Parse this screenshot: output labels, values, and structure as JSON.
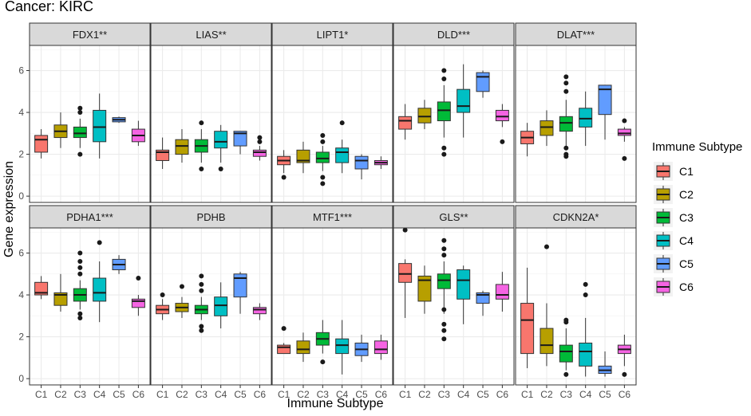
{
  "figure": {
    "title": "Cancer: KIRC",
    "xlabel": "Immune Subtype",
    "ylabel": "Gene expression",
    "legend_title": "Immune Subtype"
  },
  "chart_data": {
    "type": "boxplot",
    "facet_layout": "2 rows x 5 columns",
    "categories": [
      "C1",
      "C2",
      "C3",
      "C4",
      "C5",
      "C6"
    ],
    "colors": {
      "C1": "#F8766D",
      "C2": "#B79F00",
      "C3": "#00BA38",
      "C4": "#00BFC4",
      "C5": "#619CFF",
      "C6": "#F564E3"
    },
    "legend": [
      "C1",
      "C2",
      "C3",
      "C4",
      "C5",
      "C6"
    ],
    "legend_position": "right",
    "rows": [
      {
        "ylim": [
          0,
          7.2
        ],
        "yticks": [
          0,
          2,
          4,
          6
        ],
        "yticklabels": [
          "0",
          "2",
          "4",
          "6"
        ]
      },
      {
        "ylim": [
          0,
          7.2
        ],
        "yticks": [
          0,
          2,
          4,
          6
        ],
        "yticklabels": [
          "0",
          "2",
          "4",
          "6"
        ]
      }
    ],
    "panels": [
      {
        "title": "FDX1**",
        "boxes": [
          {
            "cat": "C1",
            "min": 1.8,
            "q1": 2.1,
            "median": 2.7,
            "q3": 2.9,
            "max": 3.2,
            "outliers": []
          },
          {
            "cat": "C2",
            "min": 2.3,
            "q1": 2.8,
            "median": 3.1,
            "q3": 3.4,
            "max": 4.0,
            "outliers": []
          },
          {
            "cat": "C3",
            "min": 2.3,
            "q1": 2.8,
            "median": 3.0,
            "q3": 3.3,
            "max": 3.7,
            "outliers": [
              2.0,
              4.0,
              4.2
            ]
          },
          {
            "cat": "C4",
            "min": 1.8,
            "q1": 2.6,
            "median": 3.3,
            "q3": 4.1,
            "max": 4.9,
            "outliers": []
          },
          {
            "cat": "C5",
            "min": 3.5,
            "q1": 3.55,
            "median": 3.65,
            "q3": 3.75,
            "max": 3.8,
            "outliers": []
          },
          {
            "cat": "C6",
            "min": 2.4,
            "q1": 2.6,
            "median": 2.9,
            "q3": 3.2,
            "max": 3.6,
            "outliers": []
          }
        ]
      },
      {
        "title": "LIAS**",
        "boxes": [
          {
            "cat": "C1",
            "min": 1.3,
            "q1": 1.7,
            "median": 2.1,
            "q3": 2.2,
            "max": 2.8,
            "outliers": []
          },
          {
            "cat": "C2",
            "min": 1.6,
            "q1": 2.0,
            "median": 2.4,
            "q3": 2.7,
            "max": 3.2,
            "outliers": []
          },
          {
            "cat": "C3",
            "min": 1.6,
            "q1": 2.1,
            "median": 2.4,
            "q3": 2.7,
            "max": 3.2,
            "outliers": [
              1.3,
              3.5
            ]
          },
          {
            "cat": "C4",
            "min": 1.6,
            "q1": 2.3,
            "median": 2.6,
            "q3": 3.1,
            "max": 3.4,
            "outliers": [
              1.3
            ]
          },
          {
            "cat": "C5",
            "min": 2.0,
            "q1": 2.4,
            "median": 3.0,
            "q3": 3.1,
            "max": 3.1,
            "outliers": []
          },
          {
            "cat": "C6",
            "min": 1.7,
            "q1": 1.9,
            "median": 2.1,
            "q3": 2.2,
            "max": 2.4,
            "outliers": [
              2.6,
              2.8
            ]
          }
        ]
      },
      {
        "title": "LIPT1*",
        "boxes": [
          {
            "cat": "C1",
            "min": 1.1,
            "q1": 1.5,
            "median": 1.7,
            "q3": 1.9,
            "max": 2.2,
            "outliers": [
              0.9
            ]
          },
          {
            "cat": "C2",
            "min": 1.1,
            "q1": 1.6,
            "median": 1.7,
            "q3": 2.2,
            "max": 2.6,
            "outliers": []
          },
          {
            "cat": "C3",
            "min": 1.2,
            "q1": 1.6,
            "median": 1.8,
            "q3": 2.1,
            "max": 2.4,
            "outliers": [
              0.6,
              0.9,
              2.6,
              2.9
            ]
          },
          {
            "cat": "C4",
            "min": 1.1,
            "q1": 1.6,
            "median": 2.1,
            "q3": 2.3,
            "max": 2.7,
            "outliers": [
              3.5
            ]
          },
          {
            "cat": "C5",
            "min": 0.8,
            "q1": 1.3,
            "median": 1.7,
            "q3": 1.9,
            "max": 2.0,
            "outliers": []
          },
          {
            "cat": "C6",
            "min": 1.3,
            "q1": 1.5,
            "median": 1.6,
            "q3": 1.7,
            "max": 1.9,
            "outliers": []
          }
        ]
      },
      {
        "title": "DLD***",
        "boxes": [
          {
            "cat": "C1",
            "min": 2.7,
            "q1": 3.2,
            "median": 3.6,
            "q3": 3.8,
            "max": 4.4,
            "outliers": []
          },
          {
            "cat": "C2",
            "min": 3.2,
            "q1": 3.5,
            "median": 3.8,
            "q3": 4.2,
            "max": 4.6,
            "outliers": []
          },
          {
            "cat": "C3",
            "min": 2.8,
            "q1": 3.6,
            "median": 4.1,
            "q3": 4.5,
            "max": 5.3,
            "outliers": [
              2.0,
              2.3,
              5.6,
              6.0
            ]
          },
          {
            "cat": "C4",
            "min": 2.8,
            "q1": 4.0,
            "median": 4.3,
            "q3": 5.1,
            "max": 6.3,
            "outliers": []
          },
          {
            "cat": "C5",
            "min": 4.7,
            "q1": 5.0,
            "median": 5.7,
            "q3": 5.9,
            "max": 6.0,
            "outliers": []
          },
          {
            "cat": "C6",
            "min": 3.3,
            "q1": 3.6,
            "median": 3.8,
            "q3": 4.1,
            "max": 4.4,
            "outliers": [
              2.6
            ]
          }
        ]
      },
      {
        "title": "DLAT***",
        "boxes": [
          {
            "cat": "C1",
            "min": 1.9,
            "q1": 2.5,
            "median": 2.8,
            "q3": 3.1,
            "max": 3.5,
            "outliers": []
          },
          {
            "cat": "C2",
            "min": 2.4,
            "q1": 2.9,
            "median": 3.3,
            "q3": 3.6,
            "max": 4.1,
            "outliers": []
          },
          {
            "cat": "C3",
            "min": 2.4,
            "q1": 3.1,
            "median": 3.5,
            "q3": 3.8,
            "max": 4.6,
            "outliers": [
              1.9,
              2.0,
              2.3,
              5.0,
              5.4,
              5.7
            ]
          },
          {
            "cat": "C4",
            "min": 2.4,
            "q1": 3.3,
            "median": 3.7,
            "q3": 4.2,
            "max": 5.0,
            "outliers": []
          },
          {
            "cat": "C5",
            "min": 2.7,
            "q1": 3.9,
            "median": 5.1,
            "q3": 5.3,
            "max": 5.3,
            "outliers": []
          },
          {
            "cat": "C6",
            "min": 2.6,
            "q1": 2.9,
            "median": 3.0,
            "q3": 3.2,
            "max": 3.3,
            "outliers": [
              1.8,
              3.6
            ]
          }
        ]
      },
      {
        "title": "PDHA1***",
        "boxes": [
          {
            "cat": "C1",
            "min": 3.8,
            "q1": 4.0,
            "median": 4.1,
            "q3": 4.6,
            "max": 4.9,
            "outliers": []
          },
          {
            "cat": "C2",
            "min": 3.2,
            "q1": 3.5,
            "median": 4.0,
            "q3": 4.1,
            "max": 5.0,
            "outliers": []
          },
          {
            "cat": "C3",
            "min": 3.3,
            "q1": 3.7,
            "median": 4.0,
            "q3": 4.3,
            "max": 4.7,
            "outliers": [
              2.9,
              3.1,
              5.0,
              5.3,
              5.6,
              6.0
            ]
          },
          {
            "cat": "C4",
            "min": 2.7,
            "q1": 3.7,
            "median": 4.1,
            "q3": 4.8,
            "max": 5.6,
            "outliers": [
              6.5
            ]
          },
          {
            "cat": "C5",
            "min": 5.0,
            "q1": 5.2,
            "median": 5.45,
            "q3": 5.7,
            "max": 5.9,
            "outliers": []
          },
          {
            "cat": "C6",
            "min": 3.0,
            "q1": 3.4,
            "median": 3.7,
            "q3": 3.8,
            "max": 4.0,
            "outliers": [
              4.8
            ]
          }
        ]
      },
      {
        "title": "PDHB",
        "boxes": [
          {
            "cat": "C1",
            "min": 2.8,
            "q1": 3.1,
            "median": 3.3,
            "q3": 3.5,
            "max": 3.8,
            "outliers": [
              4.0
            ]
          },
          {
            "cat": "C2",
            "min": 2.9,
            "q1": 3.2,
            "median": 3.4,
            "q3": 3.6,
            "max": 3.9,
            "outliers": [
              4.4
            ]
          },
          {
            "cat": "C3",
            "min": 2.8,
            "q1": 3.1,
            "median": 3.3,
            "q3": 3.5,
            "max": 3.9,
            "outliers": [
              2.3,
              2.5,
              4.2,
              4.5,
              4.9
            ]
          },
          {
            "cat": "C4",
            "min": 2.4,
            "q1": 3.0,
            "median": 3.5,
            "q3": 3.9,
            "max": 4.6,
            "outliers": []
          },
          {
            "cat": "C5",
            "min": 3.1,
            "q1": 3.9,
            "median": 4.8,
            "q3": 5.0,
            "max": 5.1,
            "outliers": []
          },
          {
            "cat": "C6",
            "min": 2.8,
            "q1": 3.1,
            "median": 3.3,
            "q3": 3.4,
            "max": 3.6,
            "outliers": []
          }
        ]
      },
      {
        "title": "MTF1***",
        "boxes": [
          {
            "cat": "C1",
            "min": 1.2,
            "q1": 1.2,
            "median": 1.5,
            "q3": 1.6,
            "max": 1.7,
            "outliers": [
              2.4
            ]
          },
          {
            "cat": "C2",
            "min": 0.8,
            "q1": 1.2,
            "median": 1.4,
            "q3": 1.8,
            "max": 2.2,
            "outliers": []
          },
          {
            "cat": "C3",
            "min": 1.2,
            "q1": 1.6,
            "median": 1.9,
            "q3": 2.2,
            "max": 2.8,
            "outliers": [
              0.8
            ]
          },
          {
            "cat": "C4",
            "min": 0.2,
            "q1": 1.2,
            "median": 1.6,
            "q3": 1.9,
            "max": 2.8,
            "outliers": []
          },
          {
            "cat": "C5",
            "min": 0.8,
            "q1": 1.1,
            "median": 1.4,
            "q3": 1.7,
            "max": 2.1,
            "outliers": []
          },
          {
            "cat": "C6",
            "min": 0.9,
            "q1": 1.2,
            "median": 1.4,
            "q3": 1.8,
            "max": 2.1,
            "outliers": []
          }
        ]
      },
      {
        "title": "GLS**",
        "boxes": [
          {
            "cat": "C1",
            "min": 2.9,
            "q1": 4.6,
            "median": 5.0,
            "q3": 5.5,
            "max": 5.7,
            "outliers": [
              7.1
            ]
          },
          {
            "cat": "C2",
            "min": 3.1,
            "q1": 3.7,
            "median": 4.7,
            "q3": 4.9,
            "max": 5.4,
            "outliers": []
          },
          {
            "cat": "C3",
            "min": 3.1,
            "q1": 4.3,
            "median": 4.7,
            "q3": 5.0,
            "max": 5.6,
            "outliers": [
              1.9,
              2.3,
              2.6,
              3.3,
              5.9,
              6.2,
              6.6
            ]
          },
          {
            "cat": "C4",
            "min": 2.6,
            "q1": 3.8,
            "median": 4.7,
            "q3": 5.2,
            "max": 5.4,
            "outliers": []
          },
          {
            "cat": "C5",
            "min": 3.0,
            "q1": 3.6,
            "median": 4.0,
            "q3": 4.1,
            "max": 4.2,
            "outliers": []
          },
          {
            "cat": "C6",
            "min": 3.2,
            "q1": 3.8,
            "median": 4.0,
            "q3": 4.5,
            "max": 5.1,
            "outliers": []
          }
        ]
      },
      {
        "title": "CDKN2A*",
        "boxes": [
          {
            "cat": "C1",
            "min": 0.5,
            "q1": 1.2,
            "median": 2.8,
            "q3": 3.6,
            "max": 5.3,
            "outliers": []
          },
          {
            "cat": "C2",
            "min": 0.6,
            "q1": 1.2,
            "median": 1.6,
            "q3": 2.4,
            "max": 3.6,
            "outliers": [
              6.3
            ]
          },
          {
            "cat": "C3",
            "min": 0.4,
            "q1": 0.8,
            "median": 1.3,
            "q3": 1.6,
            "max": 2.4,
            "outliers": [
              0.2,
              2.7,
              2.8
            ]
          },
          {
            "cat": "C4",
            "min": 0.1,
            "q1": 0.6,
            "median": 1.3,
            "q3": 1.7,
            "max": 2.9,
            "outliers": [
              4.0,
              4.5
            ]
          },
          {
            "cat": "C5",
            "min": 0.1,
            "q1": 0.25,
            "median": 0.4,
            "q3": 0.6,
            "max": 1.3,
            "outliers": []
          },
          {
            "cat": "C6",
            "min": 0.6,
            "q1": 1.2,
            "median": 1.4,
            "q3": 1.6,
            "max": 2.1,
            "outliers": [
              0.2
            ]
          }
        ]
      }
    ]
  }
}
